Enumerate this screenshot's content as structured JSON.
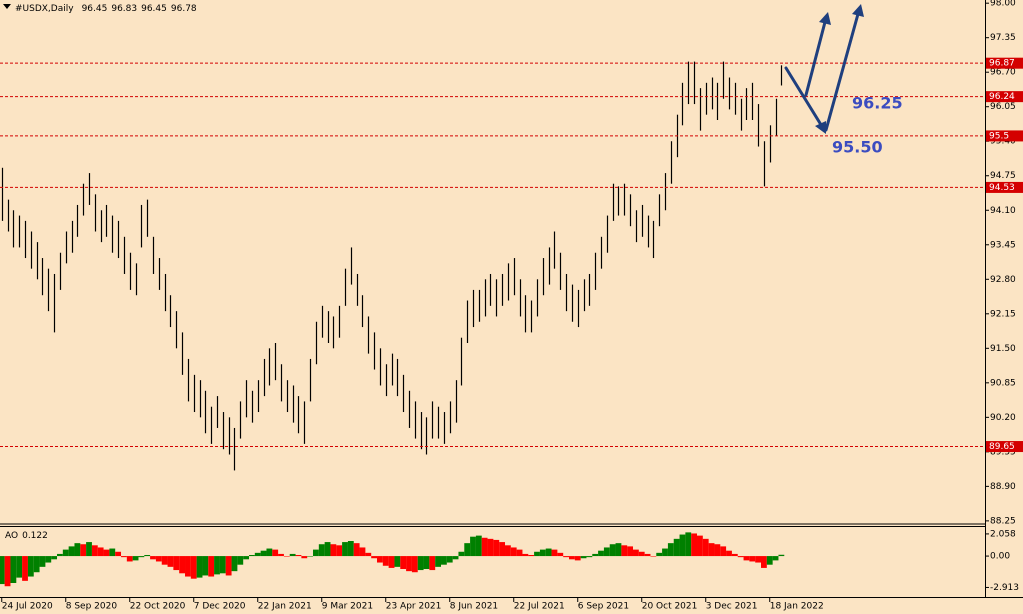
{
  "chart_data": [
    {
      "type": "ohlc",
      "symbol": "#USDX,Daily",
      "header_values": [
        96.45,
        96.83,
        96.45,
        96.78
      ],
      "bar_color": "#000000",
      "level_color": "#d40000",
      "annotation_color": "#3b4cc0",
      "high": [
        94.9,
        94.3,
        94.1,
        94.0,
        93.9,
        93.7,
        93.5,
        93.2,
        93.0,
        92.9,
        93.3,
        93.7,
        93.9,
        94.2,
        94.6,
        94.8,
        94.4,
        94.1,
        94.2,
        94.0,
        93.9,
        93.6,
        93.3,
        93.1,
        94.2,
        94.3,
        93.6,
        93.2,
        92.9,
        92.5,
        92.2,
        91.8,
        91.3,
        91.0,
        90.9,
        90.7,
        90.4,
        90.6,
        90.3,
        90.2,
        90.0,
        90.5,
        90.9,
        90.7,
        90.9,
        91.3,
        91.5,
        91.6,
        91.2,
        90.9,
        90.8,
        90.6,
        90.5,
        91.3,
        92.0,
        92.3,
        92.2,
        92.1,
        92.3,
        93.0,
        93.4,
        92.9,
        92.5,
        92.1,
        91.8,
        91.5,
        91.2,
        91.4,
        91.3,
        91.0,
        90.7,
        90.5,
        90.3,
        90.2,
        90.5,
        90.4,
        90.3,
        90.5,
        90.9,
        91.7,
        92.4,
        92.6,
        92.6,
        92.8,
        92.9,
        92.8,
        92.9,
        93.1,
        93.2,
        92.8,
        92.5,
        92.4,
        92.8,
        93.2,
        93.4,
        93.7,
        93.3,
        92.9,
        92.7,
        92.6,
        92.8,
        92.9,
        93.3,
        93.6,
        94.0,
        94.6,
        94.55,
        94.6,
        94.4,
        94.1,
        94.2,
        94.0,
        93.9,
        94.4,
        94.8,
        95.4,
        95.9,
        96.5,
        96.9,
        96.9,
        96.4,
        96.5,
        96.6,
        96.5,
        96.9,
        96.6,
        96.5,
        96.2,
        96.4,
        96.5,
        96.1,
        95.4,
        95.7,
        96.2,
        96.83
      ],
      "low": [
        93.9,
        93.7,
        93.4,
        93.4,
        93.2,
        93.0,
        92.8,
        92.5,
        92.2,
        91.8,
        92.6,
        93.1,
        93.3,
        93.6,
        94.0,
        94.2,
        93.7,
        93.5,
        93.6,
        93.3,
        93.2,
        92.9,
        92.6,
        92.5,
        93.4,
        93.6,
        92.9,
        92.6,
        92.2,
        91.9,
        91.5,
        91.0,
        90.5,
        90.3,
        90.2,
        89.9,
        89.7,
        90.0,
        89.6,
        89.5,
        89.2,
        89.8,
        90.2,
        90.1,
        90.3,
        90.6,
        90.8,
        90.9,
        90.5,
        90.3,
        90.1,
        89.9,
        89.7,
        90.5,
        91.2,
        91.7,
        91.6,
        91.5,
        91.7,
        92.3,
        92.7,
        92.3,
        91.9,
        91.4,
        91.1,
        90.8,
        90.6,
        90.8,
        90.6,
        90.3,
        90.0,
        89.8,
        89.6,
        89.5,
        89.8,
        89.8,
        89.7,
        89.9,
        90.1,
        90.8,
        91.6,
        91.9,
        92.0,
        92.1,
        92.3,
        92.1,
        92.3,
        92.4,
        92.5,
        92.1,
        91.8,
        91.8,
        92.1,
        92.5,
        92.7,
        93.0,
        92.6,
        92.2,
        92.0,
        91.9,
        92.2,
        92.3,
        92.6,
        93.0,
        93.3,
        93.9,
        94.0,
        94.0,
        93.8,
        93.5,
        93.6,
        93.4,
        93.2,
        93.8,
        94.1,
        94.6,
        95.1,
        95.7,
        96.1,
        96.1,
        95.6,
        95.9,
        96.0,
        95.8,
        96.2,
        96.0,
        95.9,
        95.6,
        95.8,
        95.8,
        95.3,
        94.55,
        95.0,
        95.5,
        96.45
      ],
      "levels": [
        96.87,
        96.24,
        95.5,
        94.53,
        89.65
      ],
      "annotations": [
        "96.25",
        "95.50"
      ],
      "xlim": [
        -0.3,
        169
      ],
      "xticks": [
        {
          "value": 0,
          "label": "24 Jul 2020"
        },
        {
          "value": 11,
          "label": "8 Sep 2020"
        },
        {
          "value": 22,
          "label": "22 Oct 2020"
        },
        {
          "value": 33,
          "label": "7 Dec 2020"
        },
        {
          "value": 44,
          "label": "22 Jan 2021"
        },
        {
          "value": 55,
          "label": "9 Mar 2021"
        },
        {
          "value": 66,
          "label": "23 Apr 2021"
        },
        {
          "value": 77,
          "label": "8 Jun 2021"
        },
        {
          "value": 88,
          "label": "22 Jul 2021"
        },
        {
          "value": 99,
          "label": "6 Sep 2021"
        },
        {
          "value": 110,
          "label": "20 Oct 2021"
        },
        {
          "value": 121,
          "label": "3 Dec 2021"
        },
        {
          "value": 132,
          "label": "18 Jan 2022"
        }
      ],
      "ylim": [
        88.21,
        98.06
      ],
      "yticks": [
        {
          "value": 98,
          "label": "98.00"
        },
        {
          "value": 97.35,
          "label": "97.35"
        },
        {
          "value": 96.7,
          "label": "96.70"
        },
        {
          "value": 96.05,
          "label": "96.05"
        },
        {
          "value": 95.4,
          "label": "95.40"
        },
        {
          "value": 94.75,
          "label": "94.75"
        },
        {
          "value": 94.1,
          "label": "94.10"
        },
        {
          "value": 93.45,
          "label": "93.45"
        },
        {
          "value": 92.8,
          "label": "92.80"
        },
        {
          "value": 92.15,
          "label": "92.15"
        },
        {
          "value": 91.5,
          "label": "91.50"
        },
        {
          "value": 90.85,
          "label": "90.85"
        },
        {
          "value": 90.2,
          "label": "90.20"
        },
        {
          "value": 89.55,
          "label": "89.55"
        },
        {
          "value": 88.9,
          "label": "88.90"
        },
        {
          "value": 88.25,
          "label": "88.25"
        }
      ]
    },
    {
      "type": "histogram",
      "title": "AO",
      "up_color": "#008000",
      "down_color": "#ff0000",
      "values": [
        -2.6,
        -2.8,
        -2.5,
        -2.0,
        -2.3,
        -1.9,
        -1.5,
        -1.0,
        -0.6,
        -0.3,
        0.2,
        0.6,
        0.9,
        1.2,
        1.1,
        1.3,
        1.0,
        0.8,
        0.6,
        0.7,
        0.4,
        -0.1,
        -0.5,
        -0.4,
        -0.1,
        0.1,
        -0.3,
        -0.5,
        -0.8,
        -1.0,
        -1.3,
        -1.6,
        -1.9,
        -2.1,
        -2.0,
        -1.8,
        -1.9,
        -1.7,
        -1.6,
        -1.8,
        -1.4,
        -0.8,
        -0.3,
        0.1,
        0.3,
        0.5,
        0.7,
        0.6,
        0.2,
        0.0,
        0.2,
        0.1,
        -0.2,
        0.0,
        0.6,
        1.1,
        1.3,
        1.1,
        1.0,
        1.3,
        1.4,
        1.2,
        0.8,
        0.3,
        -0.2,
        -0.6,
        -0.9,
        -1.1,
        -1.0,
        -1.2,
        -1.4,
        -1.5,
        -1.3,
        -1.2,
        -1.3,
        -1.0,
        -0.8,
        -0.6,
        -0.3,
        0.4,
        1.2,
        1.8,
        1.9,
        1.7,
        1.6,
        1.5,
        1.3,
        1.0,
        0.8,
        0.6,
        0.2,
        0.1,
        0.4,
        0.6,
        0.7,
        0.6,
        0.3,
        -0.1,
        -0.3,
        -0.4,
        -0.2,
        -0.1,
        0.2,
        0.5,
        0.8,
        1.1,
        1.2,
        1.0,
        0.9,
        0.6,
        0.4,
        0.2,
        0.0,
        0.3,
        0.7,
        1.2,
        1.6,
        2.0,
        2.2,
        2.1,
        1.9,
        1.6,
        1.2,
        1.1,
        0.9,
        0.5,
        0.2,
        -0.1,
        -0.4,
        -0.5,
        -0.6,
        -1.1,
        -0.8,
        -0.4,
        0.122
      ],
      "ylim": [
        -3.8,
        2.7
      ],
      "yticks": [
        2.058,
        {
          "value": 0,
          "label": "0.00"
        },
        -2.913
      ]
    }
  ]
}
